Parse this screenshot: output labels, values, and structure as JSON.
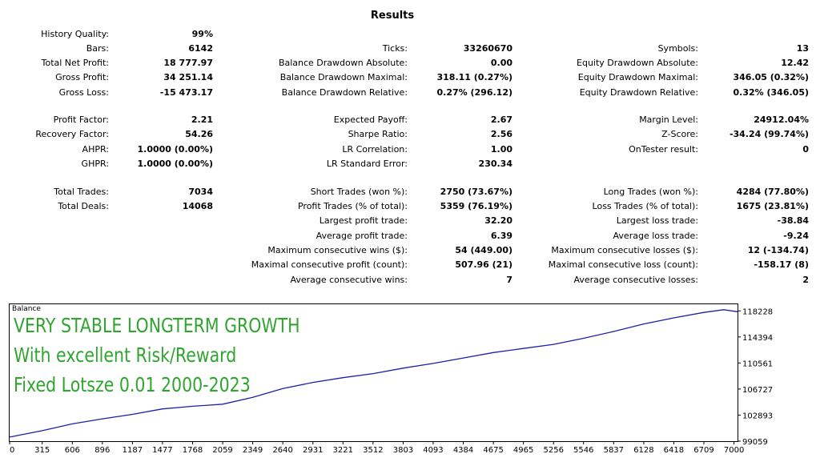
{
  "report": {
    "title": "Results",
    "col1": [
      {
        "label": "History Quality:",
        "value": "99%"
      },
      {
        "label": "Bars:",
        "value": "6142"
      },
      {
        "label": "Total Net Profit:",
        "value": "18 777.97"
      },
      {
        "label": "Gross Profit:",
        "value": "34 251.14"
      },
      {
        "label": "Gross Loss:",
        "value": "-15 473.17"
      },
      {
        "label": "Profit Factor:",
        "value": "2.21"
      },
      {
        "label": "Recovery Factor:",
        "value": "54.26"
      },
      {
        "label": "AHPR:",
        "value": "1.0000 (0.00%)"
      },
      {
        "label": "GHPR:",
        "value": "1.0000 (0.00%)"
      },
      {
        "label": "Total Trades:",
        "value": "7034"
      },
      {
        "label": "Total Deals:",
        "value": "14068"
      }
    ],
    "col2": [
      {
        "label": "Ticks:",
        "value": "33260670"
      },
      {
        "label": "Balance Drawdown Absolute:",
        "value": "0.00"
      },
      {
        "label": "Balance Drawdown Maximal:",
        "value": "318.11 (0.27%)"
      },
      {
        "label": "Balance Drawdown Relative:",
        "value": "0.27% (296.12)"
      },
      {
        "label": "Expected Payoff:",
        "value": "2.67"
      },
      {
        "label": "Sharpe Ratio:",
        "value": "2.56"
      },
      {
        "label": "LR Correlation:",
        "value": "1.00"
      },
      {
        "label": "LR Standard Error:",
        "value": "230.34"
      },
      {
        "label": "Short Trades (won %):",
        "value": "2750 (73.67%)"
      },
      {
        "label": "Profit Trades (% of total):",
        "value": "5359 (76.19%)"
      },
      {
        "label": "Largest profit trade:",
        "value": "32.20"
      },
      {
        "label": "Average profit trade:",
        "value": "6.39"
      },
      {
        "label": "Maximum consecutive wins ($):",
        "value": "54 (449.00)"
      },
      {
        "label": "Maximal consecutive profit (count):",
        "value": "507.96 (21)"
      },
      {
        "label": "Average consecutive wins:",
        "value": "7"
      }
    ],
    "col3": [
      {
        "label": "Symbols:",
        "value": "13"
      },
      {
        "label": "Equity Drawdown Absolute:",
        "value": "12.42"
      },
      {
        "label": "Equity Drawdown Maximal:",
        "value": "346.05 (0.32%)"
      },
      {
        "label": "Equity Drawdown Relative:",
        "value": "0.32% (346.05)"
      },
      {
        "label": "Margin Level:",
        "value": "24912.04%"
      },
      {
        "label": "Z-Score:",
        "value": "-34.24 (99.74%)"
      },
      {
        "label": "OnTester result:",
        "value": "0"
      },
      {
        "label": "Long Trades (won %):",
        "value": "4284 (77.80%)"
      },
      {
        "label": "Loss Trades (% of total):",
        "value": "1675 (23.81%)"
      },
      {
        "label": "Largest loss trade:",
        "value": "-38.84"
      },
      {
        "label": "Average loss trade:",
        "value": "-9.24"
      },
      {
        "label": "Maximum consecutive losses ($):",
        "value": "12 (-134.74)"
      },
      {
        "label": "Maximal consecutive loss (count):",
        "value": "-158.17 (8)"
      },
      {
        "label": "Average consecutive losses:",
        "value": "2"
      }
    ]
  },
  "overlay_text": [
    "VERY STABLE LONGTERM GROWTH",
    "With excellent Risk/Reward",
    "Fixed Lotsze 0.01 2000-2023"
  ],
  "colors": {
    "line": "#1f1fa8",
    "overlay_text": "#2fa52f",
    "grid": "#d0d0d0",
    "axis": "#000000"
  },
  "chart_data": {
    "type": "line",
    "title": "Balance",
    "grid": false,
    "x_ticks": [
      "0",
      "315",
      "606",
      "896",
      "1187",
      "1477",
      "1768",
      "2059",
      "2349",
      "2640",
      "2931",
      "3221",
      "3512",
      "3803",
      "4093",
      "4384",
      "4675",
      "4965",
      "5256",
      "5546",
      "5837",
      "6128",
      "6418",
      "6709",
      "7000"
    ],
    "y_ticks": [
      "118228",
      "114394",
      "110561",
      "106727",
      "102893",
      "99059"
    ],
    "xlim": [
      0,
      7034
    ],
    "ylim": [
      99059,
      119200
    ],
    "series": [
      {
        "x": [
          0,
          315,
          606,
          896,
          1187,
          1477,
          1768,
          2059,
          2349,
          2640,
          2931,
          3221,
          3512,
          3803,
          4093,
          4384,
          4675,
          4965,
          5256,
          5546,
          5837,
          6128,
          6418,
          6709,
          6900,
          7034
        ],
        "values": [
          99659,
          100600,
          101600,
          102350,
          103000,
          103800,
          104200,
          104500,
          105500,
          106800,
          107700,
          108400,
          109000,
          109800,
          110500,
          111300,
          112100,
          112700,
          113300,
          114200,
          115200,
          116300,
          117200,
          118000,
          118400,
          118100
        ]
      }
    ]
  }
}
